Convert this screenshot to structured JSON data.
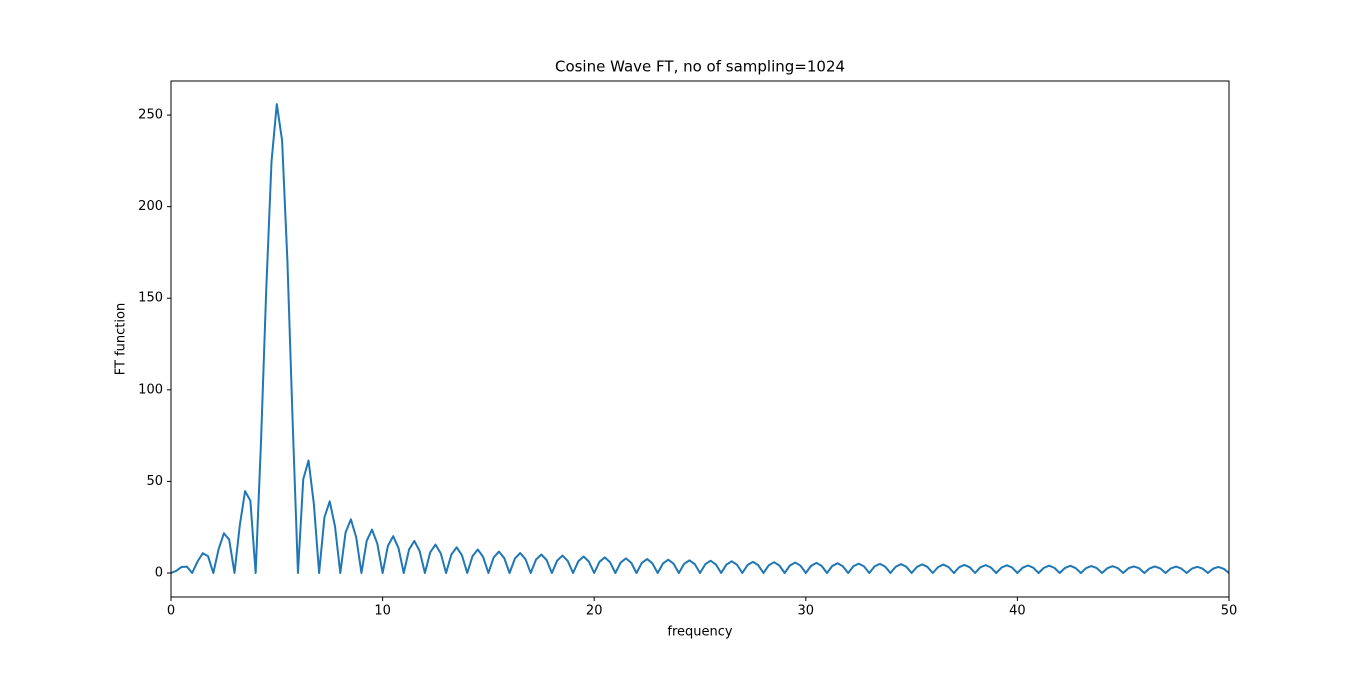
{
  "chart_data": {
    "type": "line",
    "title": "Cosine Wave FT, no of sampling=1024",
    "xlabel": "frequency",
    "ylabel": "FT function",
    "color": "#1f77b4",
    "xlim": [
      0,
      50
    ],
    "ylim": [
      -13.1,
      268.6
    ],
    "xticks": [
      0,
      10,
      20,
      30,
      40,
      50
    ],
    "yticks": [
      0,
      50,
      100,
      150,
      200,
      250
    ],
    "grid": false,
    "x": [
      0,
      0.25,
      0.5,
      0.75,
      1,
      1.25,
      1.5,
      1.75,
      2,
      2.25,
      2.5,
      2.75,
      3,
      3.25,
      3.5,
      3.75,
      4,
      4.25,
      4.5,
      4.75,
      5,
      5.25,
      5.5,
      5.75,
      6,
      6.25,
      6.5,
      6.75,
      7,
      7.25,
      7.5,
      7.75,
      8,
      8.25,
      8.5,
      8.75,
      9,
      9.25,
      9.5,
      9.75,
      10,
      10.25,
      10.5,
      10.75,
      11,
      11.25,
      11.5,
      11.75,
      12,
      12.25,
      12.5,
      12.75,
      13,
      13.25,
      13.5,
      13.75,
      14,
      14.25,
      14.5,
      14.75,
      15,
      15.25,
      15.5,
      15.75,
      16,
      16.25,
      16.5,
      16.75,
      17,
      17.25,
      17.5,
      17.75,
      18,
      18.25,
      18.5,
      18.75,
      19,
      19.25,
      19.5,
      19.75,
      20,
      20.25,
      20.5,
      20.75,
      21,
      21.25,
      21.5,
      21.75,
      22,
      22.25,
      22.5,
      22.75,
      23,
      23.25,
      23.5,
      23.75,
      24,
      24.25,
      24.5,
      24.75,
      25,
      25.25,
      25.5,
      25.75,
      26,
      26.25,
      26.5,
      26.75,
      27,
      27.25,
      27.5,
      27.75,
      28,
      28.25,
      28.5,
      28.75,
      29,
      29.25,
      29.5,
      29.75,
      30,
      30.25,
      30.5,
      30.75,
      31,
      31.25,
      31.5,
      31.75,
      32,
      32.25,
      32.5,
      32.75,
      33,
      33.25,
      33.5,
      33.75,
      34,
      34.25,
      34.5,
      34.75,
      35,
      35.25,
      35.5,
      35.75,
      36,
      36.25,
      36.5,
      36.75,
      37,
      37.25,
      37.5,
      37.75,
      38,
      38.25,
      38.5,
      38.75,
      39,
      39.25,
      39.5,
      39.75,
      40,
      40.25,
      40.5,
      40.75,
      41,
      41.25,
      41.5,
      41.75,
      42,
      42.25,
      42.5,
      42.75,
      43,
      43.25,
      43.5,
      43.75,
      44,
      44.25,
      44.5,
      44.75,
      45,
      45.25,
      45.5,
      45.75,
      46,
      46.25,
      46.5,
      46.75,
      47,
      47.25,
      47.5,
      47.75,
      48,
      48.25,
      48.5,
      48.75,
      49,
      49.25,
      49.5,
      49.75,
      50
    ],
    "values": [
      0,
      1.2,
      3.3,
      3.5,
      0,
      6.2,
      10.8,
      9.2,
      0,
      13.0,
      21.7,
      18.2,
      0,
      25.9,
      44.7,
      39.5,
      0,
      70.6,
      154.4,
      224.6,
      256,
      236.1,
      170.7,
      82.2,
      0,
      51.2,
      61.4,
      37.8,
      0,
      30.3,
      39.1,
      25.5,
      0,
      22.1,
      29.3,
      19.6,
      0,
      17.6,
      23.7,
      16.0,
      0,
      14.8,
      20.1,
      13.7,
      0,
      12.8,
      17.5,
      12.0,
      0,
      11.3,
      15.5,
      10.7,
      0,
      10.1,
      14.0,
      9.7,
      0,
      9.2,
      12.8,
      8.8,
      0,
      8.5,
      11.7,
      8.1,
      0,
      7.8,
      10.9,
      7.6,
      0,
      7.3,
      10.1,
      7.1,
      0,
      6.8,
      9.5,
      6.6,
      0,
      6.4,
      9.0,
      6.2,
      0,
      6.1,
      8.5,
      5.9,
      0,
      5.7,
      8.0,
      5.6,
      0,
      5.5,
      7.6,
      5.3,
      0,
      5.2,
      7.3,
      5.1,
      0,
      5.0,
      6.9,
      4.9,
      0,
      4.8,
      6.7,
      4.7,
      0,
      4.6,
      6.4,
      4.5,
      0,
      4.4,
      6.1,
      4.3,
      0,
      4.2,
      5.9,
      4.1,
      0,
      4.1,
      5.7,
      4.0,
      0,
      3.9,
      5.5,
      3.9,
      0,
      3.8,
      5.3,
      3.7,
      0,
      3.7,
      5.1,
      3.6,
      0,
      3.6,
      5.0,
      3.5,
      0,
      3.4,
      4.8,
      3.4,
      0,
      3.3,
      4.7,
      3.3,
      0,
      3.2,
      4.6,
      3.2,
      0,
      3.2,
      4.4,
      3.1,
      0,
      3.1,
      4.3,
      3.0,
      0,
      3.0,
      4.2,
      3.0,
      0,
      2.9,
      4.1,
      2.9,
      0,
      2.8,
      4.0,
      2.8,
      0,
      2.8,
      3.9,
      2.7,
      0,
      2.7,
      3.8,
      2.7,
      0,
      2.6,
      3.7,
      2.6,
      0,
      2.6,
      3.6,
      2.6,
      0,
      2.5,
      3.6,
      2.5,
      0,
      2.5,
      3.5,
      2.4,
      0,
      2.4,
      3.4,
      2.4,
      0,
      2.4,
      3.3,
      2.3,
      0
    ]
  }
}
